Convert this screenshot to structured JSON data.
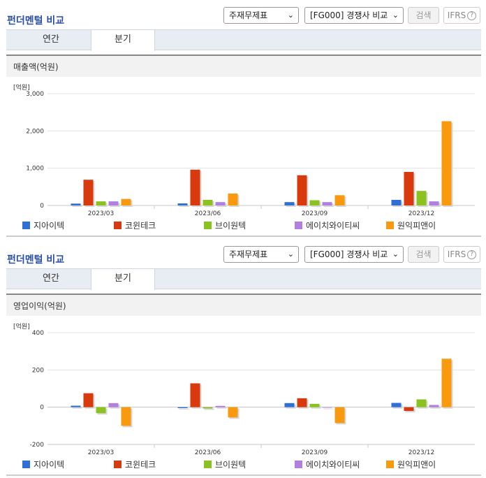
{
  "sections": [
    {
      "title": "펀더멘털 비교",
      "select1": "주재무제표",
      "select2": "[FG000] 경쟁사 비교",
      "search_label": "검색",
      "ifrs_label": "IFRS",
      "tabs": [
        {
          "label": "연간",
          "active": false
        },
        {
          "label": "분기",
          "active": true
        }
      ],
      "panel_title": "매출액(억원)",
      "unit": "[억원]"
    },
    {
      "title": "펀더멘털 비교",
      "select1": "주재무제표",
      "select2": "[FG000] 경쟁사 비교",
      "search_label": "검색",
      "ifrs_label": "IFRS",
      "tabs": [
        {
          "label": "연간",
          "active": false
        },
        {
          "label": "분기",
          "active": true
        }
      ],
      "panel_title": "영업이익(억원)",
      "unit": "[억원]"
    }
  ],
  "chart_data": [
    {
      "type": "bar",
      "title": "매출액(억원)",
      "ylabel": "[억원]",
      "categories": [
        "2023/03",
        "2023/06",
        "2023/09",
        "2023/12"
      ],
      "ylim": [
        0,
        3000
      ],
      "yticks": [
        0,
        1000,
        2000,
        3000
      ],
      "ytick_labels": [
        "0",
        "1,000",
        "2,000",
        "3,000"
      ],
      "grid": true,
      "legend": "bottom",
      "series": [
        {
          "name": "지아이텍",
          "color": "#2f6fd6",
          "values": [
            50,
            55,
            90,
            150
          ]
        },
        {
          "name": "코윈테크",
          "color": "#d83a0e",
          "values": [
            690,
            960,
            810,
            900
          ]
        },
        {
          "name": "브이원텍",
          "color": "#8cc21f",
          "values": [
            110,
            150,
            140,
            390
          ]
        },
        {
          "name": "에이치와이티씨",
          "color": "#b07fe0",
          "values": [
            110,
            90,
            90,
            110
          ]
        },
        {
          "name": "원익피앤이",
          "color": "#f99a0e",
          "values": [
            175,
            320,
            275,
            2260
          ]
        }
      ]
    },
    {
      "type": "bar",
      "title": "영업이익(억원)",
      "ylabel": "[억원]",
      "categories": [
        "2023/03",
        "2023/06",
        "2023/09",
        "2023/12"
      ],
      "ylim": [
        -200,
        400
      ],
      "yticks": [
        -200,
        0,
        200,
        400
      ],
      "ytick_labels": [
        "-200",
        "0",
        "200",
        "400"
      ],
      "grid": true,
      "legend": "bottom",
      "series": [
        {
          "name": "지아이텍",
          "color": "#2f6fd6",
          "values": [
            8,
            -5,
            22,
            23
          ]
        },
        {
          "name": "코윈테크",
          "color": "#d83a0e",
          "values": [
            75,
            128,
            48,
            -20
          ]
        },
        {
          "name": "브이원텍",
          "color": "#8cc21f",
          "values": [
            -32,
            -7,
            18,
            42
          ]
        },
        {
          "name": "에이치와이티씨",
          "color": "#b07fe0",
          "values": [
            22,
            7,
            0,
            12
          ]
        },
        {
          "name": "원익피앤이",
          "color": "#f99a0e",
          "values": [
            -100,
            -55,
            -85,
            260
          ]
        }
      ]
    }
  ]
}
